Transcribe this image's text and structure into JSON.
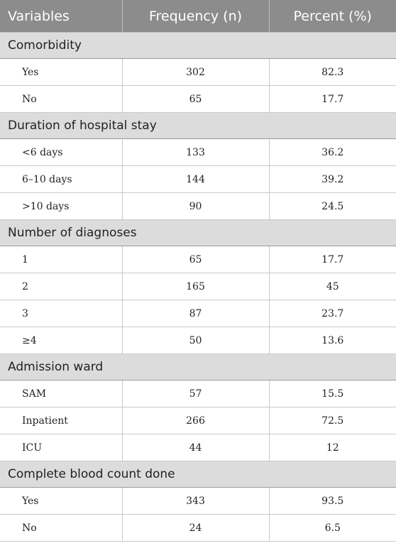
{
  "header": {
    "col_variables": "Variables",
    "col_frequency": "Frequency (n)",
    "col_percent": "Percent (%)"
  },
  "groups": [
    {
      "title": "Comorbidity",
      "rows": [
        {
          "label": "Yes",
          "n": "302",
          "pct": "82.3"
        },
        {
          "label": "No",
          "n": "65",
          "pct": "17.7"
        }
      ]
    },
    {
      "title": "Duration of hospital stay",
      "rows": [
        {
          "label": "<6 days",
          "n": "133",
          "pct": "36.2"
        },
        {
          "label": "6–10 days",
          "n": "144",
          "pct": "39.2"
        },
        {
          "label": ">10 days",
          "n": "90",
          "pct": "24.5"
        }
      ]
    },
    {
      "title": "Number of diagnoses",
      "rows": [
        {
          "label": "1",
          "n": "65",
          "pct": "17.7"
        },
        {
          "label": "2",
          "n": "165",
          "pct": "45"
        },
        {
          "label": "3",
          "n": "87",
          "pct": "23.7"
        },
        {
          "label": "≥4",
          "n": "50",
          "pct": "13.6"
        }
      ]
    },
    {
      "title": "Admission ward",
      "rows": [
        {
          "label": "SAM",
          "n": "57",
          "pct": "15.5"
        },
        {
          "label": "Inpatient",
          "n": "266",
          "pct": "72.5"
        },
        {
          "label": "ICU",
          "n": "44",
          "pct": "12"
        }
      ]
    },
    {
      "title": "Complete blood count done",
      "rows": [
        {
          "label": "Yes",
          "n": "343",
          "pct": "93.5"
        },
        {
          "label": "No",
          "n": "24",
          "pct": "6.5"
        }
      ]
    }
  ]
}
